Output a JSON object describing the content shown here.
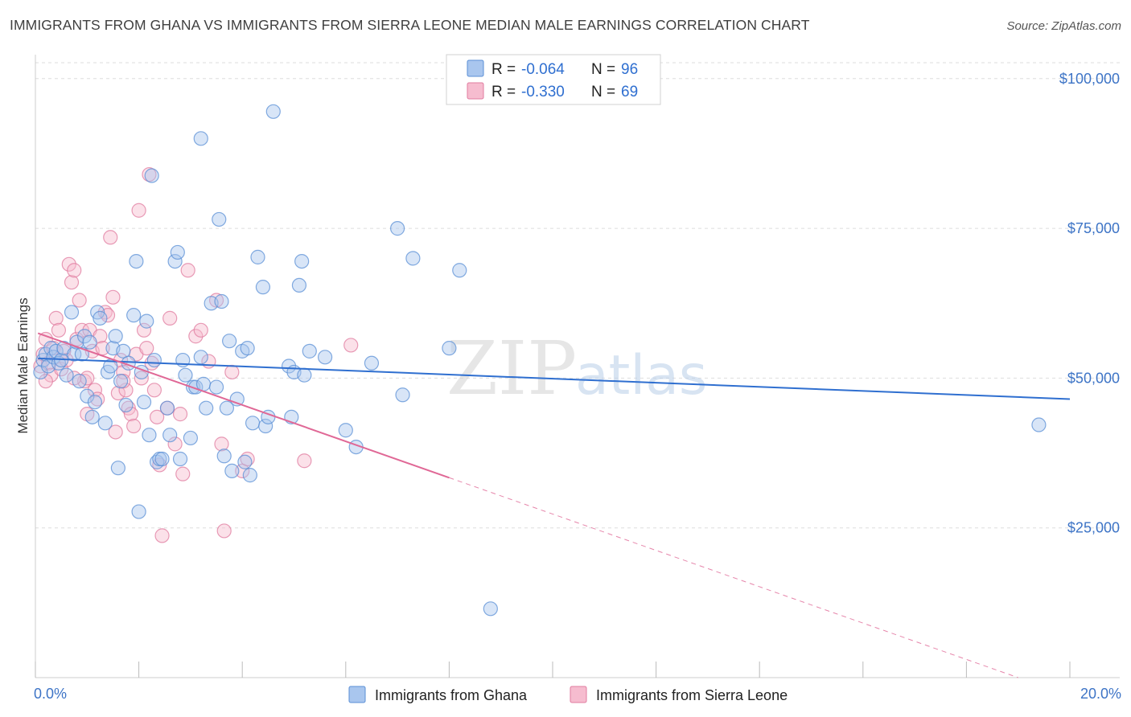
{
  "title": "IMMIGRANTS FROM GHANA VS IMMIGRANTS FROM SIERRA LEONE MEDIAN MALE EARNINGS CORRELATION CHART",
  "source": "Source: ZipAtlas.com",
  "watermark": {
    "zip": "ZIP",
    "atlas": "atlas"
  },
  "colors": {
    "ghana_fill": "#a9c6ee",
    "ghana_stroke": "#5a8fd6",
    "ghana_line": "#2f6fd0",
    "sl_fill": "#f6bccf",
    "sl_stroke": "#e07b9f",
    "sl_line": "#e06896",
    "tick_text": "#3d74c6",
    "grid": "#dddddd"
  },
  "legend": {
    "rows": [
      {
        "series": "ghana",
        "r_label": "R =",
        "r_value": "-0.064",
        "n_label": "N =",
        "n_value": "96"
      },
      {
        "series": "sierra_leone",
        "r_label": "R =",
        "r_value": "-0.330",
        "n_label": "N =",
        "n_value": "69"
      }
    ]
  },
  "bottom_legend": [
    "Immigrants from Ghana",
    "Immigrants from Sierra Leone"
  ],
  "chart_data": {
    "type": "scatter",
    "title": "IMMIGRANTS FROM GHANA VS IMMIGRANTS FROM SIERRA LEONE MEDIAN MALE EARNINGS CORRELATION CHART",
    "xlabel": "",
    "ylabel": "Median Male Earnings",
    "xlim": [
      0,
      20
    ],
    "ylim": [
      0,
      104000
    ],
    "x_tick_labels": [
      {
        "value": 0,
        "label": "0.0%"
      },
      {
        "value": 20,
        "label": "20.0%"
      }
    ],
    "y_ticks": [
      {
        "value": 25000,
        "label": "$25,000"
      },
      {
        "value": 50000,
        "label": "$50,000"
      },
      {
        "value": 75000,
        "label": "$75,000"
      },
      {
        "value": 100000,
        "label": "$100,000"
      }
    ],
    "x_minor_ticks": [
      0,
      2,
      4,
      6,
      8,
      10,
      12,
      14,
      16,
      18,
      20
    ],
    "series": [
      {
        "name": "Immigrants from Ghana",
        "key": "ghana",
        "r": -0.064,
        "n": 96,
        "trend": {
          "x0": 0.05,
          "y0": 53300,
          "x1": 20.0,
          "y1": 46500,
          "dash_from_x": null
        },
        "points": [
          [
            0.1,
            51000
          ],
          [
            0.15,
            53000
          ],
          [
            0.2,
            54000
          ],
          [
            0.25,
            52000
          ],
          [
            0.3,
            55000
          ],
          [
            0.35,
            53500
          ],
          [
            0.4,
            54500
          ],
          [
            0.45,
            52500
          ],
          [
            0.5,
            53000
          ],
          [
            0.55,
            55000
          ],
          [
            0.6,
            50500
          ],
          [
            0.7,
            61000
          ],
          [
            0.75,
            54000
          ],
          [
            0.8,
            56000
          ],
          [
            0.85,
            49500
          ],
          [
            0.9,
            54000
          ],
          [
            0.95,
            57000
          ],
          [
            1.0,
            47000
          ],
          [
            1.05,
            56000
          ],
          [
            1.1,
            43500
          ],
          [
            1.15,
            46000
          ],
          [
            1.2,
            61000
          ],
          [
            1.25,
            60000
          ],
          [
            1.35,
            42500
          ],
          [
            1.4,
            51000
          ],
          [
            1.45,
            52000
          ],
          [
            1.5,
            55000
          ],
          [
            1.55,
            57000
          ],
          [
            1.6,
            35000
          ],
          [
            1.65,
            49500
          ],
          [
            1.7,
            54500
          ],
          [
            1.75,
            45500
          ],
          [
            1.8,
            52500
          ],
          [
            1.9,
            60500
          ],
          [
            1.95,
            69500
          ],
          [
            2.0,
            27700
          ],
          [
            2.05,
            51000
          ],
          [
            2.1,
            46000
          ],
          [
            2.15,
            59500
          ],
          [
            2.2,
            40500
          ],
          [
            2.25,
            83800
          ],
          [
            2.3,
            53000
          ],
          [
            2.35,
            36000
          ],
          [
            2.4,
            36500
          ],
          [
            2.45,
            36500
          ],
          [
            2.55,
            45000
          ],
          [
            2.6,
            40500
          ],
          [
            2.7,
            69500
          ],
          [
            2.75,
            71000
          ],
          [
            2.8,
            36500
          ],
          [
            2.85,
            53000
          ],
          [
            2.9,
            50500
          ],
          [
            3.0,
            40000
          ],
          [
            3.05,
            48500
          ],
          [
            3.1,
            48500
          ],
          [
            3.2,
            90000
          ],
          [
            3.25,
            49000
          ],
          [
            3.3,
            45000
          ],
          [
            3.4,
            62500
          ],
          [
            3.5,
            48500
          ],
          [
            3.55,
            76500
          ],
          [
            3.6,
            62800
          ],
          [
            3.65,
            37000
          ],
          [
            3.7,
            45000
          ],
          [
            3.75,
            56200
          ],
          [
            3.8,
            34500
          ],
          [
            3.9,
            46500
          ],
          [
            4.0,
            54500
          ],
          [
            4.05,
            36000
          ],
          [
            4.1,
            55000
          ],
          [
            4.15,
            33800
          ],
          [
            4.2,
            42500
          ],
          [
            4.3,
            70200
          ],
          [
            4.4,
            65200
          ],
          [
            4.45,
            42000
          ],
          [
            4.5,
            43500
          ],
          [
            4.6,
            94500
          ],
          [
            4.9,
            52000
          ],
          [
            4.95,
            43500
          ],
          [
            5.0,
            51000
          ],
          [
            5.1,
            65500
          ],
          [
            5.15,
            69500
          ],
          [
            5.2,
            50500
          ],
          [
            5.3,
            54500
          ],
          [
            6.0,
            41300
          ],
          [
            6.2,
            38500
          ],
          [
            7.0,
            75000
          ],
          [
            7.1,
            47200
          ],
          [
            7.3,
            70000
          ],
          [
            8.0,
            55000
          ],
          [
            8.2,
            68000
          ],
          [
            8.8,
            11500
          ],
          [
            19.4,
            42200
          ],
          [
            5.6,
            53500
          ],
          [
            6.5,
            52500
          ],
          [
            3.2,
            53500
          ]
        ]
      },
      {
        "name": "Immigrants from Sierra Leone",
        "key": "sierra_leone",
        "r": -0.33,
        "n": 69,
        "trend": {
          "x0": 0.05,
          "y0": 57500,
          "x1": 19.0,
          "y1": 0,
          "dash_from_x": 8.0
        },
        "points": [
          [
            0.1,
            52000
          ],
          [
            0.15,
            54000
          ],
          [
            0.2,
            56500
          ],
          [
            0.25,
            52500
          ],
          [
            0.3,
            50500
          ],
          [
            0.35,
            55000
          ],
          [
            0.4,
            60000
          ],
          [
            0.45,
            58000
          ],
          [
            0.5,
            51500
          ],
          [
            0.55,
            54500
          ],
          [
            0.6,
            53000
          ],
          [
            0.65,
            69000
          ],
          [
            0.7,
            66000
          ],
          [
            0.75,
            68000
          ],
          [
            0.8,
            56500
          ],
          [
            0.85,
            63000
          ],
          [
            0.9,
            58000
          ],
          [
            0.95,
            49500
          ],
          [
            1.0,
            50000
          ],
          [
            1.05,
            58000
          ],
          [
            1.1,
            54500
          ],
          [
            1.15,
            48000
          ],
          [
            1.2,
            46500
          ],
          [
            1.25,
            57000
          ],
          [
            1.3,
            55000
          ],
          [
            1.35,
            61000
          ],
          [
            1.4,
            60500
          ],
          [
            1.45,
            73500
          ],
          [
            1.5,
            63500
          ],
          [
            1.55,
            41000
          ],
          [
            1.6,
            47500
          ],
          [
            1.65,
            53000
          ],
          [
            1.7,
            51000
          ],
          [
            1.75,
            48000
          ],
          [
            1.8,
            45000
          ],
          [
            1.85,
            44000
          ],
          [
            1.9,
            42000
          ],
          [
            1.95,
            54000
          ],
          [
            2.0,
            78000
          ],
          [
            2.05,
            50000
          ],
          [
            2.1,
            58000
          ],
          [
            2.15,
            55000
          ],
          [
            2.2,
            84000
          ],
          [
            2.3,
            48000
          ],
          [
            2.35,
            43500
          ],
          [
            2.4,
            35500
          ],
          [
            2.45,
            23700
          ],
          [
            2.55,
            45000
          ],
          [
            2.6,
            60000
          ],
          [
            2.7,
            39000
          ],
          [
            2.8,
            44000
          ],
          [
            2.85,
            34000
          ],
          [
            2.95,
            68000
          ],
          [
            3.1,
            57000
          ],
          [
            3.2,
            58000
          ],
          [
            3.35,
            52800
          ],
          [
            3.5,
            63000
          ],
          [
            3.6,
            39000
          ],
          [
            3.65,
            24500
          ],
          [
            3.8,
            51000
          ],
          [
            4.0,
            34500
          ],
          [
            4.1,
            36500
          ],
          [
            5.2,
            36200
          ],
          [
            6.1,
            55500
          ],
          [
            0.2,
            49500
          ],
          [
            1.7,
            49500
          ],
          [
            0.75,
            50000
          ],
          [
            2.25,
            52500
          ],
          [
            1.0,
            44000
          ]
        ]
      }
    ]
  }
}
